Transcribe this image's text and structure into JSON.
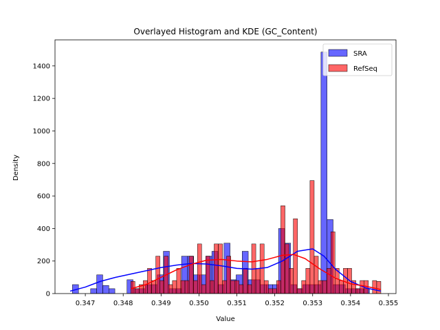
{
  "chart_data": {
    "type": "bar",
    "title": "Overlayed Histogram and KDE (GC_Content)",
    "xlabel": "Value",
    "ylabel": "Density",
    "xlim": [
      0.3462,
      0.3552
    ],
    "ylim": [
      0,
      1560
    ],
    "x_ticks": [
      0.347,
      0.348,
      0.349,
      0.35,
      0.351,
      0.352,
      0.353,
      0.354,
      0.355
    ],
    "x_tick_labels": [
      "0.347",
      "0.348",
      "0.349",
      "0.350",
      "0.351",
      "0.352",
      "0.353",
      "0.354",
      "0.355"
    ],
    "y_ticks": [
      0,
      200,
      400,
      600,
      800,
      1000,
      1200,
      1400
    ],
    "y_tick_labels": [
      "0",
      "200",
      "400",
      "600",
      "800",
      "1000",
      "1200",
      "1400"
    ],
    "legend_position": "top-right",
    "series": [
      {
        "name": "SRA",
        "color": "#0000ff",
        "fill_opacity": 0.6,
        "bin_width": 0.00016,
        "bins": [
          [
            0.34666,
            55
          ],
          [
            0.34714,
            30
          ],
          [
            0.3473,
            115
          ],
          [
            0.34746,
            50
          ],
          [
            0.34762,
            30
          ],
          [
            0.3481,
            85
          ],
          [
            0.34826,
            30
          ],
          [
            0.34842,
            30
          ],
          [
            0.34858,
            55
          ],
          [
            0.34874,
            55
          ],
          [
            0.3489,
            115
          ],
          [
            0.34906,
            260
          ],
          [
            0.34922,
            30
          ],
          [
            0.34938,
            30
          ],
          [
            0.34954,
            230
          ],
          [
            0.3497,
            230
          ],
          [
            0.34986,
            115
          ],
          [
            0.35002,
            115
          ],
          [
            0.35018,
            230
          ],
          [
            0.35034,
            260
          ],
          [
            0.3505,
            55
          ],
          [
            0.35066,
            310
          ],
          [
            0.35082,
            85
          ],
          [
            0.35098,
            115
          ],
          [
            0.35114,
            260
          ],
          [
            0.3513,
            85
          ],
          [
            0.35146,
            85
          ],
          [
            0.35162,
            55
          ],
          [
            0.35178,
            55
          ],
          [
            0.35194,
            55
          ],
          [
            0.3521,
            400
          ],
          [
            0.35226,
            310
          ],
          [
            0.35242,
            55
          ],
          [
            0.35258,
            30
          ],
          [
            0.35274,
            55
          ],
          [
            0.3529,
            55
          ],
          [
            0.35306,
            55
          ],
          [
            0.35322,
            1485
          ],
          [
            0.35338,
            455
          ],
          [
            0.35354,
            55
          ],
          [
            0.3537,
            55
          ],
          [
            0.35386,
            30
          ],
          [
            0.35402,
            30
          ],
          [
            0.35418,
            30
          ],
          [
            0.35434,
            30
          ]
        ],
        "kde": [
          [
            0.3466,
            15
          ],
          [
            0.347,
            40
          ],
          [
            0.3474,
            75
          ],
          [
            0.3478,
            100
          ],
          [
            0.3482,
            120
          ],
          [
            0.3486,
            140
          ],
          [
            0.349,
            160
          ],
          [
            0.3494,
            175
          ],
          [
            0.3498,
            185
          ],
          [
            0.3502,
            182
          ],
          [
            0.3506,
            170
          ],
          [
            0.351,
            155
          ],
          [
            0.3514,
            150
          ],
          [
            0.3518,
            160
          ],
          [
            0.3522,
            200
          ],
          [
            0.3526,
            260
          ],
          [
            0.353,
            275
          ],
          [
            0.3533,
            230
          ],
          [
            0.3536,
            150
          ],
          [
            0.354,
            75
          ],
          [
            0.3544,
            35
          ],
          [
            0.3548,
            15
          ]
        ]
      },
      {
        "name": "RefSeq",
        "color": "#ff0000",
        "fill_opacity": 0.6,
        "bin_width": 0.00011,
        "bins": [
          [
            0.3482,
            75
          ],
          [
            0.34831,
            30
          ],
          [
            0.34842,
            55
          ],
          [
            0.34853,
            80
          ],
          [
            0.34864,
            155
          ],
          [
            0.34875,
            80
          ],
          [
            0.34886,
            230
          ],
          [
            0.34897,
            80
          ],
          [
            0.34908,
            230
          ],
          [
            0.34919,
            55
          ],
          [
            0.3493,
            80
          ],
          [
            0.34941,
            155
          ],
          [
            0.34952,
            80
          ],
          [
            0.34963,
            80
          ],
          [
            0.34974,
            230
          ],
          [
            0.34985,
            80
          ],
          [
            0.34996,
            305
          ],
          [
            0.35007,
            55
          ],
          [
            0.35018,
            230
          ],
          [
            0.35029,
            80
          ],
          [
            0.3504,
            305
          ],
          [
            0.35051,
            305
          ],
          [
            0.35062,
            80
          ],
          [
            0.35073,
            230
          ],
          [
            0.35084,
            80
          ],
          [
            0.35095,
            80
          ],
          [
            0.35106,
            55
          ],
          [
            0.35117,
            155
          ],
          [
            0.35128,
            55
          ],
          [
            0.35139,
            305
          ],
          [
            0.3515,
            155
          ],
          [
            0.35161,
            305
          ],
          [
            0.35172,
            80
          ],
          [
            0.35183,
            30
          ],
          [
            0.35194,
            30
          ],
          [
            0.35205,
            80
          ],
          [
            0.35216,
            540
          ],
          [
            0.35227,
            305
          ],
          [
            0.35238,
            155
          ],
          [
            0.35249,
            460
          ],
          [
            0.3526,
            30
          ],
          [
            0.35271,
            80
          ],
          [
            0.35282,
            155
          ],
          [
            0.35293,
            695
          ],
          [
            0.35304,
            230
          ],
          [
            0.35315,
            80
          ],
          [
            0.35326,
            80
          ],
          [
            0.35337,
            155
          ],
          [
            0.35348,
            380
          ],
          [
            0.35359,
            155
          ],
          [
            0.3537,
            80
          ],
          [
            0.35381,
            155
          ],
          [
            0.35392,
            155
          ],
          [
            0.35403,
            80
          ],
          [
            0.35414,
            30
          ],
          [
            0.35425,
            80
          ],
          [
            0.35436,
            80
          ],
          [
            0.35458,
            80
          ],
          [
            0.35469,
            75
          ]
        ],
        "kde": [
          [
            0.3482,
            30
          ],
          [
            0.3486,
            55
          ],
          [
            0.349,
            100
          ],
          [
            0.3494,
            145
          ],
          [
            0.3498,
            180
          ],
          [
            0.3502,
            205
          ],
          [
            0.3506,
            210
          ],
          [
            0.351,
            200
          ],
          [
            0.3514,
            195
          ],
          [
            0.3518,
            210
          ],
          [
            0.3522,
            235
          ],
          [
            0.3525,
            240
          ],
          [
            0.3528,
            215
          ],
          [
            0.3532,
            150
          ],
          [
            0.3536,
            95
          ],
          [
            0.354,
            60
          ],
          [
            0.3544,
            45
          ],
          [
            0.3548,
            25
          ]
        ]
      }
    ]
  }
}
